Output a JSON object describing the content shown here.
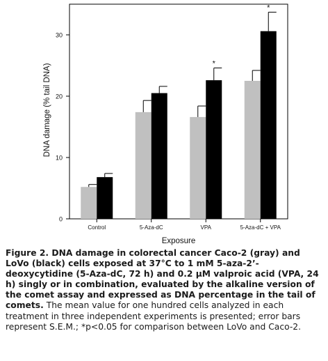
{
  "chart_data": {
    "type": "bar",
    "xlabel": "Exposure",
    "ylabel": "DNA damage (% tail DNA)",
    "ylim": [
      0,
      35
    ],
    "yticks": [
      0,
      10,
      20,
      30
    ],
    "categories": [
      "Control",
      "5-Aza-dC",
      "VPA",
      "5-Aza-dC + VPA"
    ],
    "series": [
      {
        "values": [
          5.2,
          17.4,
          16.6,
          22.5
        ],
        "errors": [
          0.4,
          1.9,
          1.8,
          1.7
        ],
        "color": "#c0c0c0"
      },
      {
        "values": [
          6.8,
          20.5,
          22.6,
          30.6
        ],
        "errors": [
          0.6,
          1.1,
          2.0,
          3.1
        ],
        "color": "#000000"
      }
    ],
    "significance_markers": [
      {
        "category": "VPA",
        "label": "*"
      },
      {
        "category": "5-Aza-dC + VPA",
        "label": "*"
      }
    ]
  },
  "caption": {
    "bold": "Figure 2. DNA damage in colorectal cancer Caco-2 (gray) and LoVo (black) cells exposed at 37°C to 1 mM 5-aza-2’-deoxycytidine (5-Aza-dC, 72 h) and 0.2 µM valproic acid (VPA, 24 h) singly or in combination, evaluated by the alkaline version of the comet assay and expressed as DNA percentage in the tail of comets.",
    "rest": "The mean value for one hundred cells analyzed in each treatment in three independent experiments is presented; error bars represent S.E.M.; *p<0.05 for comparison between LoVo and Caco-2."
  }
}
